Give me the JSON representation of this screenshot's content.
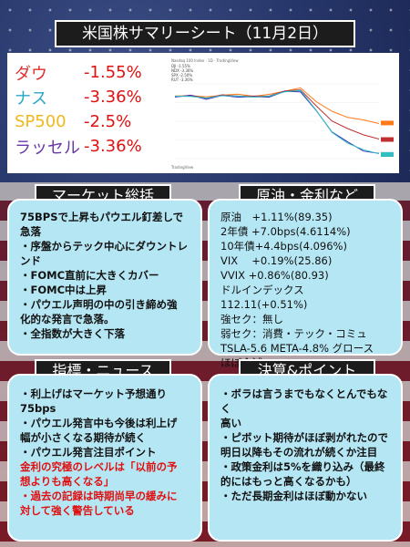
{
  "title": "米国株サマリーシート（11月2日）",
  "indices": [
    {
      "name": "ダウ",
      "value": "-1.55%",
      "color": "#e03030"
    },
    {
      "name": "ナス",
      "value": "-3.36%",
      "color": "#2aa6c8"
    },
    {
      "name": "SP500",
      "value": "-2.5%",
      "color": "#f1b81e"
    },
    {
      "name": "ラッセル",
      "value": "-3.36%",
      "color": "#6a36a8"
    }
  ],
  "mini_chart": {
    "header": "Nasdaq 100 Index · 1D · TradingView",
    "legend": [
      "DJI  -1.55%",
      "NDX  -3.36%",
      "SPX  -2.50%",
      "RUT  -3.36%"
    ],
    "footer": "TradingView"
  },
  "chart_data": {
    "type": "line",
    "series": [
      {
        "name": "ダウ",
        "color": "#ff7a1a",
        "values": [
          0.0,
          0.02,
          -0.05,
          0.05,
          0.1,
          0.0,
          0.08,
          0.3,
          0.45,
          -0.3,
          -0.9,
          -1.2,
          -1.4,
          -1.55
        ]
      },
      {
        "name": "SP500",
        "color": "#c03030",
        "values": [
          0.0,
          0.0,
          -0.08,
          0.02,
          0.05,
          -0.05,
          0.05,
          0.25,
          0.4,
          -0.6,
          -1.4,
          -1.9,
          -2.2,
          -2.5
        ]
      },
      {
        "name": "ナス",
        "color": "#3030c0",
        "values": [
          0.0,
          -0.02,
          -0.12,
          -0.03,
          0.0,
          -0.1,
          0.0,
          0.2,
          0.3,
          -0.9,
          -2.0,
          -2.7,
          -3.1,
          -3.36
        ]
      },
      {
        "name": "ラッセル",
        "color": "#30c0c0",
        "values": [
          0.0,
          -0.03,
          -0.1,
          0.0,
          0.02,
          -0.08,
          0.02,
          0.22,
          0.35,
          -0.85,
          -2.05,
          -2.75,
          -3.05,
          -3.36
        ]
      }
    ],
    "ylim": [
      -3.6,
      0.7
    ]
  },
  "market": {
    "title": "マーケット総括",
    "lines": [
      "75BPSで上昇もパウエル釘差しで",
      "急落",
      "・序盤からテック中心にダウントレンド",
      "・FOMC直前に大きくカバー",
      "・FOMC中は上昇",
      "・パウエル声明の中の引き締め強",
      "化的な発言で急落。",
      "・全指数が大きく下落"
    ]
  },
  "rates": {
    "title": "原油・金利など",
    "lines": [
      "原油　+1.11%(89.35)",
      "2年債 +7.0bps(4.6114%)",
      "10年債+4.4bps(4.096%)",
      "VIX　 +0.19%(25.86)",
      "VVIX +0.86%(80.93)",
      "ドルインデックス 112.11(+0.51%)",
      "強セク：無し",
      "弱セク：消費・テック・コミュ",
      "TSLA-5.6 META-4.8% グロース",
      "ほぼ全滅"
    ]
  },
  "news": {
    "title": "指標・ニュース",
    "lines": [
      {
        "text": "・利上げはマーケット予想通り",
        "style": "normal"
      },
      {
        "text": "75bps",
        "style": "normal"
      },
      {
        "text": "・パウエル発言中も今後は利上げ",
        "style": "normal"
      },
      {
        "text": "幅が小さくなる期待が続く",
        "style": "normal"
      },
      {
        "text": "・パウエル発言注目ポイント",
        "style": "normal"
      },
      {
        "text": "金利の究極のレベルは「以前の予",
        "style": "red"
      },
      {
        "text": "想よりも高くなる」",
        "style": "red"
      },
      {
        "text": "・過去の記録は時期尚早の緩みに",
        "style": "red"
      },
      {
        "text": "対して強く警告している",
        "style": "red"
      }
    ]
  },
  "kessan": {
    "title": "決算&ポイント",
    "lines": [
      "・ボラは言うまでもなくとんでもなく",
      "高い",
      "・ピボット期待がほぼ剥がれたので",
      "明日以降もその流れが続くか注目",
      "・政策金利は5%を織り込み（最終",
      "的にはもっと高くなるかも）",
      "・ただ長期金利はほぼ動かない"
    ]
  }
}
